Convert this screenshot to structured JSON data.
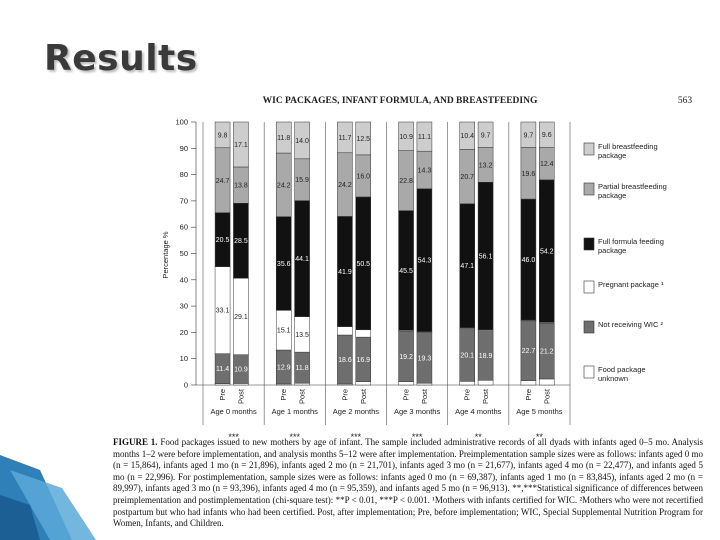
{
  "slide_title": "Results",
  "running_head": "WIC PACKAGES, INFANT FORMULA, AND BREASTFEEDING",
  "page_number": "563",
  "figure_label": "FIGURE 1.",
  "caption": "Food packages issued to new mothers by age of infant. The sample included administrative records of all dyads with infants aged 0–5 mo. Analysis months 1–2 were before implementation, and analysis months 5–12 were after implementation. Preimplementation sample sizes were as follows: infants aged 0 mo (n = 15,864), infants aged 1 mo (n = 21,896), infants aged 2 mo (n = 21,701), infants aged 3 mo (n = 21,677), infants aged 4 mo (n = 22,477), and infants aged 5 mo (n = 22,996). For postimplementation, sample sizes were as follows: infants aged 0 mo (n = 69,387), infants aged 1 mo (n = 83,845), infants aged 2 mo (n = 89,997), infants aged 3 mo (n = 93,396), infants aged 4 mo (n = 95,359), and infants aged 5 mo (n = 96,913). **,***Statistical significance of differences between preimplementation and postimplementation (chi-square test): **P < 0.01, ***P < 0.001. ¹Mothers with infants certified for WIC. ²Mothers who were not recertified postpartum but who had infants who had been certified. Post, after implementation; Pre, before implementation; WIC, Special Supplemental Nutrition Program for Women, Infants, and Children.",
  "chart_data": {
    "type": "stacked_bar",
    "y_label": "Percentage %",
    "categories": [
      "Pre",
      "Post",
      "Pre",
      "Post",
      "Pre",
      "Post",
      "Pre",
      "Post",
      "Pre",
      "Post",
      "Pre",
      "Post"
    ],
    "groups": [
      "Age 0 months",
      "Age 1 months",
      "Age 2 months",
      "Age 3 months",
      "Age 4 months",
      "Age 5 months"
    ],
    "significance": [
      "***",
      "***",
      "***",
      "***",
      "**",
      "**"
    ],
    "ylim": [
      0,
      100
    ],
    "yticks": [
      0,
      10,
      20,
      30,
      40,
      50,
      60,
      70,
      80,
      90,
      100
    ],
    "series": [
      {
        "name": "Food package unknown",
        "color": "#ffffff",
        "values": [
          0.5,
          0.6,
          0.4,
          0.7,
          0.4,
          1.3,
          1.3,
          0.7,
          1.4,
          1.8,
          1.7,
          2.3
        ],
        "value_labels": [
          null,
          null,
          null,
          null,
          null,
          null,
          null,
          null,
          null,
          null,
          null,
          null
        ]
      },
      {
        "name": "Not receiving WIC ²",
        "color": "#6e6e6e",
        "values": [
          11.4,
          10.9,
          12.9,
          11.8,
          18.6,
          16.9,
          19.2,
          19.3,
          20.1,
          18.9,
          22.7,
          21.2
        ],
        "value_labels": [
          "11.4",
          "10.9",
          "12.9",
          "11.8",
          "18.6",
          "16.9",
          "19.2",
          "19.3",
          "20.1",
          "18.9",
          "22.7",
          "21.2"
        ]
      },
      {
        "name": "Pregnant package ¹",
        "color": "#ffffff",
        "values": [
          33.1,
          29.1,
          15.1,
          13.5,
          3.2,
          2.8,
          0.3,
          0.3,
          0.3,
          0.3,
          0.3,
          0.3
        ],
        "value_labels": [
          "33.1",
          "29.1",
          "15.1",
          "13.5",
          null,
          null,
          null,
          null,
          null,
          null,
          null,
          null
        ]
      },
      {
        "name": "Full formula feeding package",
        "color": "#111111",
        "values": [
          20.5,
          28.5,
          35.6,
          44.1,
          41.9,
          50.5,
          45.5,
          54.3,
          47.1,
          56.1,
          46.0,
          54.2
        ],
        "value_labels": [
          "20.5",
          "28.5",
          "35.6",
          "44.1",
          "41.9",
          "50.5",
          "45.5",
          "54.3",
          "47.1",
          "56.1",
          "46.0",
          "54.2"
        ]
      },
      {
        "name": "Partial breastfeeding package",
        "color": "#a9a9a9",
        "values": [
          24.7,
          13.8,
          24.2,
          15.9,
          24.2,
          16.0,
          22.8,
          14.3,
          20.7,
          13.2,
          19.6,
          12.4
        ],
        "value_labels": [
          "24.7",
          "13.8",
          "24.2",
          "15.9",
          "24.2",
          "16.0",
          "22.8",
          "14.3",
          "20.7",
          "13.2",
          "19.6",
          "12.4"
        ]
      },
      {
        "name": "Full breastfeeding package",
        "color": "#cdcdcd",
        "values": [
          9.8,
          17.1,
          11.8,
          14.0,
          11.7,
          12.5,
          10.9,
          11.1,
          10.4,
          9.7,
          9.7,
          9.6
        ],
        "value_labels": [
          "9.8",
          "17.1",
          "11.8",
          "14.0",
          "11.7",
          "12.5",
          "10.9",
          "11.1",
          "10.4",
          "9.7",
          "9.7",
          "9.6"
        ]
      }
    ]
  }
}
